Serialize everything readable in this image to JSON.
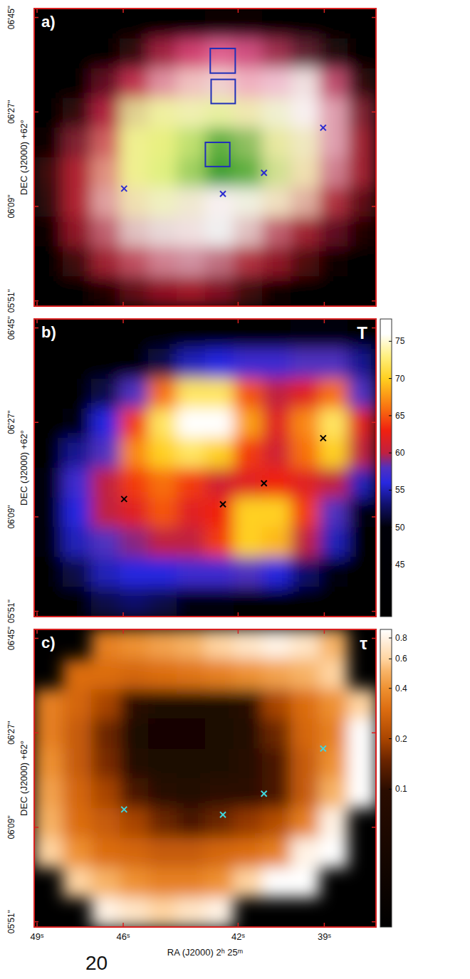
{
  "chart_data": [
    {
      "type": "image",
      "panel": "a)",
      "y_label": "DEC (J2000) +62°",
      "xlim": [
        49.1,
        37.2
      ],
      "ylim": [
        350,
        406.7
      ],
      "xticks": [
        {
          "value": 49,
          "label": "49ˢ"
        },
        {
          "value": 46,
          "label": "46ˢ"
        },
        {
          "value": 42,
          "label": "42ˢ"
        },
        {
          "value": 39,
          "label": "39ˢ"
        }
      ],
      "yticks": [
        {
          "value": 405,
          "label": "06'45\""
        },
        {
          "value": 387,
          "label": "06'27\""
        },
        {
          "value": 369,
          "label": "06'09\""
        },
        {
          "value": 351,
          "label": "05'51\""
        }
      ],
      "tick_labels": "y",
      "pixels": [
        [
          "#000000",
          "#000000",
          "#000000",
          "#000000",
          "#000000",
          "#000000",
          "#100004",
          "#100004",
          "#000000",
          "#000000",
          "#000000",
          "#000000"
        ],
        [
          "#000000",
          "#000000",
          "#000000",
          "#300810",
          "#a02040",
          "#d04070",
          "#e06090",
          "#d05080",
          "#a03050",
          "#602030",
          "#200810",
          "#000000"
        ],
        [
          "#000000",
          "#000000",
          "#601020",
          "#c03050",
          "#e090a0",
          "#f0c0c0",
          "#f0d0d0",
          "#f0b0c0",
          "#f0c0d0",
          "#f0e0e0",
          "#c05070",
          "#300810"
        ],
        [
          "#000000",
          "#300810",
          "#b02040",
          "#e0d090",
          "#f0f0a0",
          "#f0f0b0",
          "#e8f0a0",
          "#f0e8b0",
          "#f0f0d0",
          "#f8f0f0",
          "#e0a0b0",
          "#802030"
        ],
        [
          "#100000",
          "#802030",
          "#d06060",
          "#f0f090",
          "#e8f080",
          "#c0e070",
          "#60b040",
          "#90c060",
          "#e8e8a0",
          "#f0e8c0",
          "#e0a0b0",
          "#a02030"
        ],
        [
          "#400810",
          "#b02030",
          "#e09080",
          "#f0f090",
          "#e0f080",
          "#a0d060",
          "#40a030",
          "#60b040",
          "#d0e090",
          "#f0e0b0",
          "#d08090",
          "#a02030"
        ],
        [
          "#300810",
          "#b02030",
          "#e0a0a0",
          "#f0e0b0",
          "#f0f0c0",
          "#f0e8d0",
          "#f8f0f0",
          "#f0f0e0",
          "#f0e0c0",
          "#e0b0a0",
          "#b03040",
          "#600818"
        ],
        [
          "#100000",
          "#901828",
          "#c06070",
          "#e0c0c0",
          "#e8d8d8",
          "#f0e0e0",
          "#f0f0f0",
          "#e0c0c0",
          "#c06070",
          "#a02030",
          "#601020",
          "#200000"
        ],
        [
          "#000000",
          "#400810",
          "#a02030",
          "#c05060",
          "#d08090",
          "#d090a0",
          "#c07080",
          "#b03040",
          "#901828",
          "#500810",
          "#100000",
          "#000000"
        ],
        [
          "#000000",
          "#000000",
          "#200000",
          "#600818",
          "#901020",
          "#a01828",
          "#801020",
          "#400810",
          "#100000",
          "#000000",
          "#000000",
          "#000000"
        ]
      ],
      "boxes": [
        {
          "x": [
            42.97,
            42.1
          ],
          "y": [
            394.4,
            399.1
          ]
        },
        {
          "x": [
            42.94,
            42.1
          ],
          "y": [
            388.6,
            393.2
          ]
        },
        {
          "x": [
            43.14,
            42.29
          ],
          "y": [
            376.6,
            381.2
          ]
        }
      ],
      "series": [
        {
          "type": "scatter",
          "marker": "x",
          "color": "#2a2ad0",
          "x": [
            45.97,
            42.53,
            41.1,
            39.04
          ],
          "values": [
            372.4,
            371.4,
            375.4,
            384.0
          ]
        }
      ]
    },
    {
      "type": "heatmap",
      "panel": "b)",
      "title": "T",
      "y_label": "DEC (J2000) +62°",
      "xlim": [
        49.1,
        37.2
      ],
      "ylim": [
        350,
        406.7
      ],
      "xticks": [
        {
          "value": 49,
          "label": "49ˢ"
        },
        {
          "value": 46,
          "label": "46ˢ"
        },
        {
          "value": 42,
          "label": "42ˢ"
        },
        {
          "value": 39,
          "label": "39ˢ"
        }
      ],
      "yticks": [
        {
          "value": 405,
          "label": "06'45\""
        },
        {
          "value": 387,
          "label": "06'27\""
        },
        {
          "value": 369,
          "label": "06'09\""
        },
        {
          "value": 351,
          "label": "05'51\""
        }
      ],
      "tick_labels": "y",
      "clim": [
        38,
        78
      ],
      "cticks": [
        45,
        50,
        55,
        60,
        65,
        70,
        75
      ],
      "cells": [
        [
          40,
          40,
          40,
          40,
          40,
          40,
          40,
          42,
          45,
          48,
          50,
          46
        ],
        [
          40,
          40,
          42,
          46,
          52,
          55,
          56,
          57,
          57,
          58,
          58,
          54
        ],
        [
          42,
          45,
          52,
          58,
          66,
          72,
          72,
          65,
          60,
          62,
          66,
          58
        ],
        [
          44,
          50,
          56,
          64,
          72,
          77,
          76,
          68,
          62,
          67,
          72,
          62
        ],
        [
          47,
          54,
          58,
          67,
          70,
          72,
          70,
          64,
          61,
          66,
          70,
          60
        ],
        [
          50,
          57,
          60,
          64,
          66,
          64,
          61,
          62,
          63,
          62,
          60,
          55
        ],
        [
          50,
          56,
          60,
          62,
          65,
          62,
          63,
          70,
          70,
          64,
          58,
          50
        ],
        [
          48,
          55,
          58,
          59,
          60,
          60,
          64,
          70,
          69,
          60,
          55,
          46
        ],
        [
          45,
          52,
          55,
          56,
          56,
          57,
          57,
          58,
          56,
          53,
          48,
          42
        ],
        [
          42,
          46,
          52,
          53,
          52,
          50,
          48,
          46,
          44,
          42,
          40,
          40
        ]
      ],
      "series": [
        {
          "type": "scatter",
          "marker": "x",
          "color": "#000000",
          "x": [
            45.97,
            42.53,
            41.1,
            39.04
          ],
          "values": [
            372.4,
            371.4,
            375.4,
            384.0
          ]
        }
      ]
    },
    {
      "type": "heatmap",
      "panel": "c)",
      "title": "τ",
      "y_label": "DEC (J2000) +62°",
      "x_label": "RA (J2000) 2ʰ 25ᵐ",
      "xlim": [
        49.1,
        37.2
      ],
      "ylim": [
        350,
        406.7
      ],
      "xticks": [
        {
          "value": 49,
          "label": "49ˢ"
        },
        {
          "value": 46,
          "label": "46ˢ"
        },
        {
          "value": 42,
          "label": "42ˢ"
        },
        {
          "value": 39,
          "label": "39ˢ"
        }
      ],
      "yticks": [
        {
          "value": 405,
          "label": "06'45\""
        },
        {
          "value": 387,
          "label": "06'27\""
        },
        {
          "value": 369,
          "label": "06'09\""
        },
        {
          "value": 351,
          "label": "05'51\""
        }
      ],
      "log": true,
      "clim": [
        0.015,
        0.9
      ],
      "cticks": [
        0.1,
        0.2,
        0.4,
        0.6,
        0.8
      ],
      "cells": [
        [
          null,
          null,
          0.35,
          0.4,
          0.45,
          0.5,
          0.6,
          0.7,
          0.8,
          0.7,
          0.5,
          null
        ],
        [
          null,
          0.3,
          0.3,
          0.28,
          0.3,
          0.32,
          0.35,
          0.4,
          0.45,
          0.5,
          0.6,
          null
        ],
        [
          0.35,
          0.28,
          0.2,
          0.1,
          0.06,
          0.05,
          0.06,
          0.09,
          0.2,
          0.3,
          0.4,
          0.6
        ],
        [
          0.35,
          0.25,
          0.15,
          0.06,
          0.04,
          0.04,
          0.05,
          0.07,
          0.15,
          0.28,
          0.35,
          0.9
        ],
        [
          0.4,
          0.25,
          0.16,
          0.07,
          0.05,
          0.05,
          0.06,
          0.08,
          0.12,
          0.25,
          0.4,
          0.9
        ],
        [
          0.45,
          0.28,
          0.2,
          0.12,
          0.08,
          0.07,
          0.1,
          0.1,
          0.12,
          0.25,
          0.5,
          0.9
        ],
        [
          0.5,
          0.3,
          0.25,
          0.2,
          0.15,
          0.12,
          0.15,
          0.18,
          0.22,
          0.35,
          0.8,
          null
        ],
        [
          0.6,
          0.4,
          0.3,
          0.28,
          0.25,
          0.25,
          0.28,
          0.3,
          0.35,
          0.8,
          0.9,
          null
        ],
        [
          null,
          0.6,
          0.5,
          0.4,
          0.35,
          0.35,
          0.4,
          0.6,
          0.9,
          0.9,
          null,
          null
        ],
        [
          null,
          null,
          0.8,
          0.7,
          0.6,
          0.7,
          0.8,
          null,
          null,
          null,
          null,
          null
        ]
      ],
      "series": [
        {
          "type": "scatter",
          "marker": "x",
          "color": "#40d8e0",
          "x": [
            45.97,
            42.53,
            41.1,
            39.04
          ],
          "values": [
            372.4,
            371.4,
            375.4,
            384.0
          ]
        }
      ]
    }
  ],
  "page_number": "20"
}
